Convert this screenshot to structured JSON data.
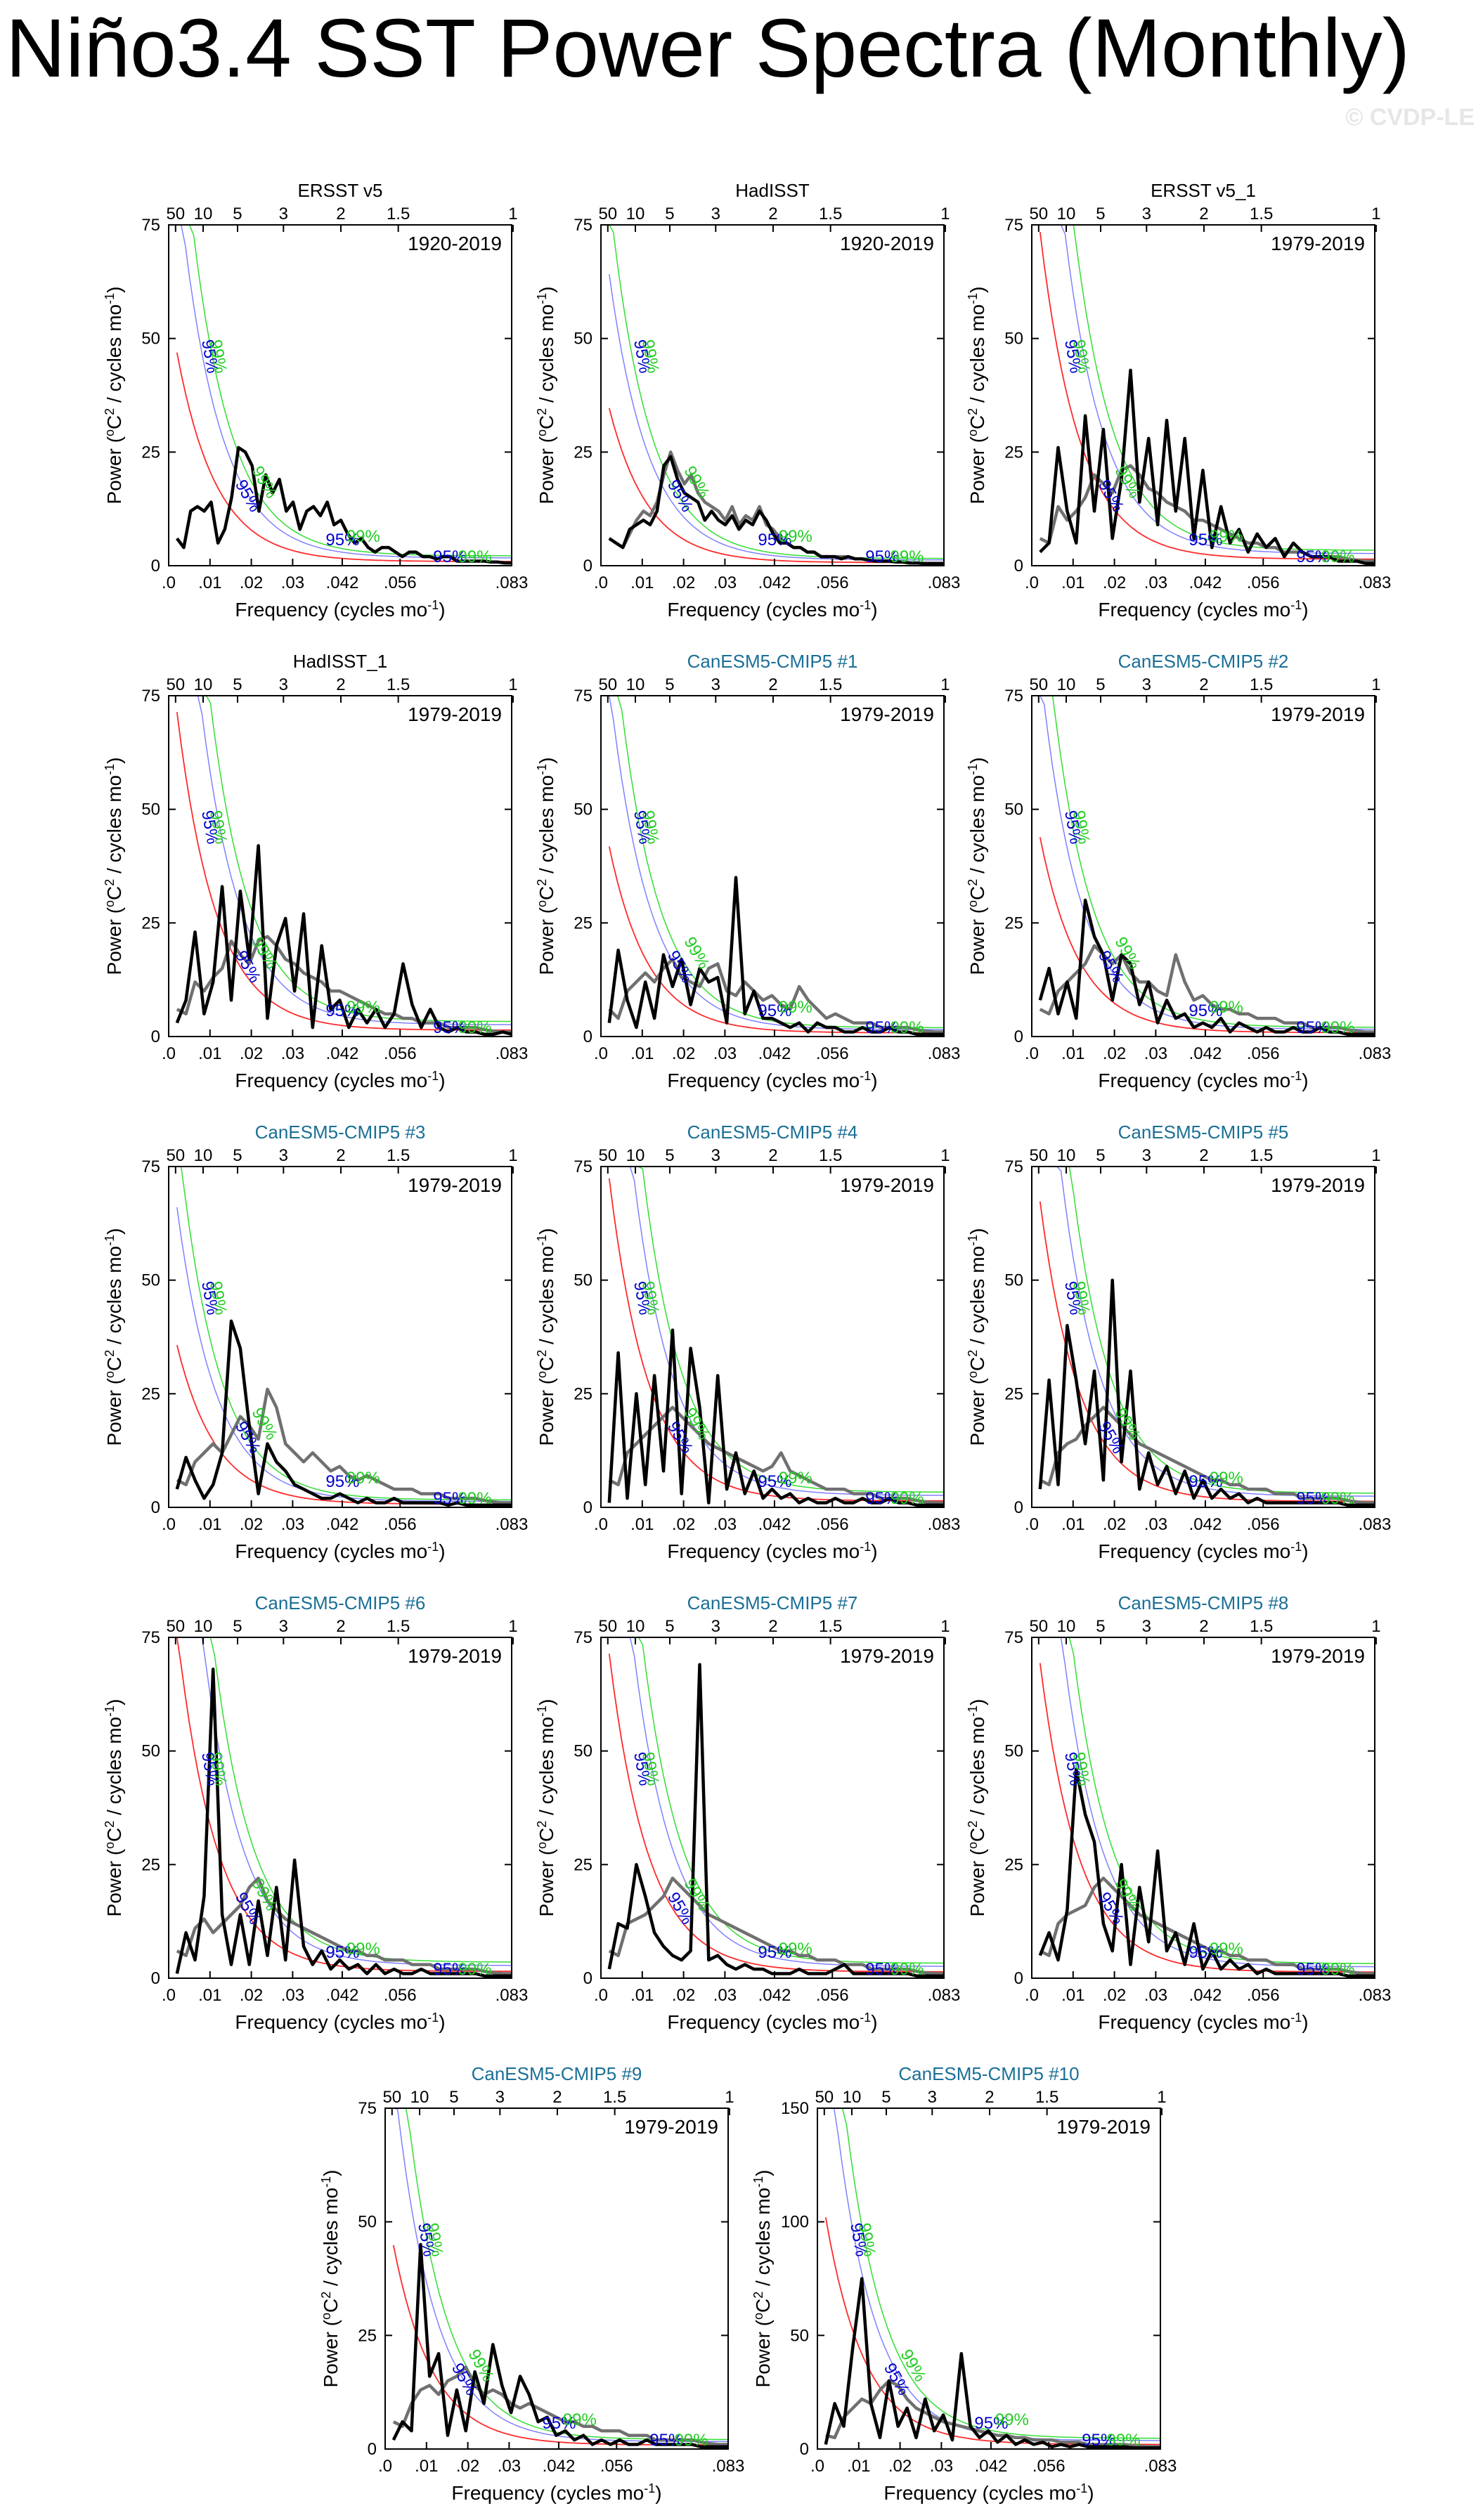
{
  "title": "Niño3.4 SST Power Spectra (Monthly)",
  "watermark": "© CVDP-LE",
  "colors": {
    "spectrum": "#000000",
    "obs_spectrum": "#707070",
    "red_noise": "#ff2a2a",
    "conf95": "#8080ff",
    "conf99": "#33dd33",
    "label95": "#0000cc",
    "label99": "#22cc22",
    "model_title": "#1a6f96",
    "obs_title": "#000000"
  },
  "common": {
    "xlabel": "Frequency (cycles mo",
    "xlabel_sup": "-1",
    "xlabel_end": ")",
    "ylabel": "Power (",
    "ylabel_deg": "o",
    "ylabel_mid": "C",
    "ylabel_sq": "2",
    "ylabel_end": " / cycles mo",
    "ylabel_sup": "-1",
    "ylabel_close": ")",
    "xticks": [
      0,
      0.014,
      0.028,
      0.042,
      0.056,
      0.083
    ],
    "xtick_labels": [
      ".0",
      ".01",
      ".02",
      ".03",
      ".042",
      ".056",
      ".083"
    ],
    "xtick_values": [
      0,
      0.01,
      0.02,
      0.03,
      0.042,
      0.056,
      0.083
    ],
    "period_labels": [
      "50",
      "10",
      "5",
      "3",
      "2",
      "1.5",
      "1"
    ],
    "period_years": [
      50,
      10,
      5,
      3,
      2,
      1.5,
      1
    ],
    "xlim": [
      0,
      0.083
    ],
    "label95": "95%",
    "label99": "99%"
  },
  "chart_data": [
    {
      "type": "line",
      "title": "ERSST v5",
      "model": false,
      "period": "1920-2019",
      "ylim": [
        0,
        75
      ],
      "yticks": [
        "0",
        "25",
        "50",
        "75"
      ],
      "red_start": 46,
      "spec": [
        6,
        4,
        12,
        13,
        12,
        14,
        5,
        8,
        15,
        26,
        25,
        22,
        12,
        20,
        16,
        19,
        12,
        14,
        8,
        12,
        13,
        11,
        14,
        9,
        10,
        7,
        5,
        6,
        4,
        3,
        4,
        4,
        3,
        2,
        3,
        3,
        2,
        2,
        1.5,
        2,
        2,
        1,
        1,
        1,
        1,
        1,
        0.8,
        0.8,
        0.6,
        0.6
      ],
      "obs": null
    },
    {
      "type": "line",
      "title": "HadISST",
      "model": false,
      "period": "1920-2019",
      "ylim": [
        0,
        75
      ],
      "yticks": [
        "0",
        "25",
        "50",
        "75"
      ],
      "red_start": 34,
      "spec": [
        6,
        5,
        4,
        8,
        9,
        10,
        9,
        12,
        22,
        24,
        19,
        16,
        15,
        14,
        10,
        12,
        10,
        9,
        11,
        8,
        10,
        9,
        12,
        10,
        7,
        5,
        5,
        4,
        4,
        3,
        3,
        2,
        2,
        2,
        1.5,
        2,
        1.5,
        1.5,
        1.2,
        1,
        1,
        1,
        0.8,
        0.8,
        0.6,
        0.6,
        0.5,
        0.5,
        0.5,
        0.5
      ],
      "obs": [
        6,
        5,
        4,
        7,
        10,
        12,
        11,
        14,
        20,
        25,
        21,
        18,
        20,
        16,
        14,
        13,
        12,
        10,
        13,
        9,
        11,
        10,
        13,
        9,
        8,
        6,
        5,
        4,
        4,
        3,
        3,
        2,
        2,
        2,
        2,
        2,
        1.5,
        1.5,
        1.2,
        1,
        1,
        1,
        0.8,
        0.8,
        0.6,
        0.6,
        0.5,
        0.5,
        0.5,
        0.5
      ]
    },
    {
      "type": "line",
      "title": "ERSST v5_1",
      "model": false,
      "period": "1979-2019",
      "ylim": [
        0,
        75
      ],
      "yticks": [
        "0",
        "25",
        "50",
        "75"
      ],
      "red_start": 72,
      "spec": [
        3,
        5,
        26,
        12,
        5,
        33,
        12,
        30,
        6,
        19,
        43,
        14,
        28,
        9,
        32,
        12,
        28,
        6,
        21,
        4,
        13,
        5,
        8,
        3,
        7,
        4,
        6,
        2,
        5,
        3,
        2,
        2,
        2,
        1,
        1,
        1,
        0.5,
        0.5
      ],
      "obs": [
        6,
        5,
        13,
        10,
        12,
        15,
        20,
        18,
        16,
        21,
        22,
        20,
        17,
        16,
        14,
        13,
        12,
        10,
        10,
        9,
        8,
        7,
        6,
        5,
        5,
        4,
        4,
        3,
        3,
        3,
        2,
        2,
        2,
        2,
        1.5,
        1.2,
        1,
        1
      ]
    },
    {
      "type": "line",
      "title": "HadISST_1",
      "model": false,
      "period": "1979-2019",
      "ylim": [
        0,
        75
      ],
      "yticks": [
        "0",
        "25",
        "50",
        "75"
      ],
      "red_start": 70,
      "spec": [
        3,
        8,
        23,
        5,
        12,
        33,
        8,
        32,
        17,
        42,
        4,
        20,
        26,
        10,
        27,
        2,
        20,
        6,
        8,
        2,
        6,
        3,
        6,
        2,
        5,
        16,
        7,
        2,
        6,
        2,
        1,
        2,
        1,
        1,
        0.5,
        0.5,
        1,
        0.5
      ],
      "obs": [
        6,
        5,
        12,
        10,
        13,
        15,
        21,
        18,
        16,
        21,
        22,
        20,
        17,
        16,
        14,
        13,
        12,
        10,
        10,
        9,
        8,
        7,
        6,
        5,
        5,
        4,
        4,
        3,
        3,
        3,
        2,
        2,
        2,
        2,
        1.5,
        1.2,
        1,
        1
      ]
    },
    {
      "type": "line",
      "title": "CanESM5-CMIP5 #1",
      "model": true,
      "period": "1979-2019",
      "ylim": [
        0,
        75
      ],
      "yticks": [
        "0",
        "25",
        "50",
        "75"
      ],
      "red_start": 41,
      "spec": [
        3,
        19,
        8,
        2,
        12,
        4,
        18,
        11,
        17,
        7,
        15,
        12,
        13,
        3,
        35,
        5,
        10,
        4,
        4,
        3,
        2,
        3,
        1,
        3,
        2,
        2,
        1,
        1,
        2,
        1,
        1,
        2,
        1,
        1,
        0.5,
        0.5,
        0.5,
        0.5
      ],
      "obs": [
        6,
        4,
        10,
        12,
        14,
        12,
        15,
        17,
        13,
        12,
        11,
        15,
        16,
        10,
        9,
        12,
        10,
        8,
        9,
        7,
        6,
        11,
        8,
        6,
        4,
        5,
        4,
        3,
        3,
        3,
        2,
        2,
        2,
        2,
        1.5,
        1.2,
        1,
        1
      ]
    },
    {
      "type": "line",
      "title": "CanESM5-CMIP5 #2",
      "model": true,
      "period": "1979-2019",
      "ylim": [
        0,
        75
      ],
      "yticks": [
        "0",
        "25",
        "50",
        "75"
      ],
      "red_start": 43,
      "spec": [
        8,
        15,
        5,
        12,
        4,
        30,
        22,
        18,
        8,
        18,
        16,
        7,
        12,
        3,
        8,
        4,
        5,
        2,
        3,
        2,
        4,
        1,
        3,
        2,
        1,
        2,
        1,
        1,
        2,
        1,
        1,
        2,
        1,
        1,
        0.5,
        0.5,
        0.5,
        0.5
      ],
      "obs": [
        6,
        5,
        10,
        12,
        14,
        16,
        20,
        18,
        16,
        18,
        14,
        12,
        12,
        10,
        9,
        18,
        12,
        8,
        9,
        7,
        6,
        6,
        5,
        5,
        4,
        4,
        4,
        3,
        3,
        3,
        2,
        2,
        2,
        2,
        1.5,
        1.2,
        1,
        1
      ]
    },
    {
      "type": "line",
      "title": "CanESM5-CMIP5 #3",
      "model": true,
      "period": "1979-2019",
      "ylim": [
        0,
        75
      ],
      "yticks": [
        "0",
        "25",
        "50",
        "75"
      ],
      "red_start": 35,
      "spec": [
        4,
        11,
        6,
        2,
        5,
        12,
        41,
        35,
        18,
        3,
        14,
        10,
        8,
        5,
        4,
        3,
        2,
        2,
        3,
        2,
        1,
        2,
        1,
        1,
        2,
        1,
        1,
        1,
        1,
        1,
        0.5,
        1,
        0.5,
        0.5,
        0.5,
        0.5,
        0.5,
        0.5
      ],
      "obs": [
        6,
        5,
        10,
        12,
        14,
        12,
        16,
        20,
        18,
        15,
        26,
        22,
        14,
        12,
        10,
        12,
        10,
        8,
        9,
        7,
        6,
        7,
        6,
        5,
        4,
        4,
        4,
        3,
        3,
        3,
        2,
        2,
        2,
        2,
        1.5,
        1.2,
        1,
        1
      ]
    },
    {
      "type": "line",
      "title": "CanESM5-CMIP5 #4",
      "model": true,
      "period": "1979-2019",
      "ylim": [
        0,
        75
      ],
      "yticks": [
        "0",
        "25",
        "50",
        "75"
      ],
      "red_start": 71,
      "spec": [
        1,
        34,
        2,
        25,
        5,
        29,
        8,
        39,
        3,
        35,
        22,
        1,
        29,
        4,
        12,
        3,
        8,
        2,
        4,
        2,
        3,
        1,
        2,
        1,
        1,
        2,
        1,
        1,
        2,
        1,
        1,
        2,
        1,
        1,
        0.5,
        0.5,
        0.5,
        0.5
      ],
      "obs": [
        6,
        5,
        12,
        14,
        16,
        18,
        20,
        22,
        20,
        18,
        16,
        14,
        13,
        12,
        11,
        10,
        9,
        8,
        9,
        12,
        8,
        7,
        6,
        5,
        4,
        4,
        4,
        3,
        3,
        3,
        2,
        2,
        2,
        2,
        1.5,
        1.2,
        1,
        1
      ]
    },
    {
      "type": "line",
      "title": "CanESM5-CMIP5 #5",
      "model": true,
      "period": "1979-2019",
      "ylim": [
        0,
        75
      ],
      "yticks": [
        "0",
        "25",
        "50",
        "75"
      ],
      "red_start": 66,
      "spec": [
        4,
        28,
        5,
        40,
        28,
        14,
        30,
        6,
        50,
        10,
        30,
        4,
        12,
        5,
        9,
        3,
        8,
        2,
        6,
        2,
        4,
        2,
        3,
        1,
        2,
        1,
        1,
        1,
        1,
        1,
        1,
        1,
        1,
        1,
        0.5,
        0.5,
        0.5,
        0.5
      ],
      "obs": [
        6,
        5,
        12,
        14,
        15,
        18,
        20,
        22,
        20,
        18,
        16,
        14,
        13,
        12,
        11,
        10,
        9,
        8,
        7,
        6,
        6,
        5,
        5,
        4,
        4,
        4,
        3,
        3,
        3,
        2,
        2,
        2,
        2,
        2,
        1.5,
        1.2,
        1,
        1
      ]
    },
    {
      "type": "line",
      "title": "CanESM5-CMIP5 #6",
      "model": true,
      "period": "1979-2019",
      "ylim": [
        0,
        75
      ],
      "yticks": [
        "0",
        "25",
        "50",
        "75"
      ],
      "red_start": 75,
      "spec": [
        1,
        10,
        4,
        18,
        68,
        14,
        3,
        14,
        3,
        17,
        5,
        20,
        4,
        26,
        7,
        3,
        6,
        2,
        4,
        2,
        3,
        1,
        3,
        1,
        2,
        1,
        1,
        2,
        1,
        1,
        1,
        1,
        1,
        1,
        0.5,
        0.5,
        0.5,
        0.5
      ],
      "obs": [
        6,
        5,
        11,
        13,
        10,
        12,
        14,
        16,
        20,
        22,
        17,
        15,
        13,
        12,
        11,
        10,
        9,
        8,
        7,
        6,
        6,
        5,
        5,
        4,
        4,
        4,
        3,
        3,
        3,
        2,
        2,
        2,
        2,
        2,
        1.5,
        1.2,
        1,
        1
      ]
    },
    {
      "type": "line",
      "title": "CanESM5-CMIP5 #7",
      "model": true,
      "period": "1979-2019",
      "ylim": [
        0,
        75
      ],
      "yticks": [
        "0",
        "25",
        "50",
        "75"
      ],
      "red_start": 70,
      "spec": [
        2,
        12,
        11,
        25,
        18,
        10,
        7,
        5,
        4,
        6,
        69,
        4,
        5,
        3,
        2,
        3,
        2,
        2,
        1,
        1,
        1,
        2,
        1,
        1,
        1,
        2,
        3,
        1,
        1,
        1,
        1,
        1,
        1,
        1,
        0.5,
        0.5,
        0.5,
        0.5
      ],
      "obs": [
        6,
        5,
        12,
        13,
        14,
        16,
        18,
        22,
        20,
        18,
        16,
        14,
        13,
        12,
        11,
        10,
        9,
        8,
        7,
        6,
        6,
        5,
        5,
        4,
        4,
        4,
        3,
        3,
        3,
        2,
        2,
        2,
        2,
        2,
        1.5,
        1.2,
        1,
        1
      ]
    },
    {
      "type": "line",
      "title": "CanESM5-CMIP5 #8",
      "model": true,
      "period": "1979-2019",
      "ylim": [
        0,
        75
      ],
      "yticks": [
        "0",
        "25",
        "50",
        "75"
      ],
      "red_start": 68,
      "spec": [
        5,
        10,
        4,
        15,
        46,
        36,
        30,
        12,
        6,
        25,
        3,
        20,
        8,
        28,
        6,
        10,
        3,
        12,
        2,
        6,
        2,
        4,
        2,
        3,
        1,
        2,
        1,
        1,
        1,
        1,
        1,
        1,
        1,
        1,
        0.5,
        0.5,
        0.5,
        0.5
      ],
      "obs": [
        6,
        5,
        12,
        14,
        15,
        16,
        20,
        22,
        20,
        18,
        16,
        14,
        13,
        12,
        11,
        10,
        9,
        8,
        7,
        6,
        6,
        5,
        5,
        4,
        4,
        4,
        3,
        3,
        3,
        2,
        2,
        2,
        2,
        2,
        1.5,
        1.2,
        1,
        1
      ]
    },
    {
      "type": "line",
      "title": "CanESM5-CMIP5 #9",
      "model": true,
      "period": "1979-2019",
      "ylim": [
        0,
        75
      ],
      "yticks": [
        "0",
        "25",
        "50",
        "75"
      ],
      "red_start": 44,
      "spec": [
        2,
        6,
        4,
        45,
        16,
        21,
        3,
        13,
        4,
        17,
        10,
        23,
        14,
        8,
        16,
        12,
        6,
        7,
        3,
        4,
        2,
        3,
        1,
        2,
        1,
        2,
        1,
        1,
        2,
        1,
        1,
        1,
        1,
        1,
        0.5,
        0.5,
        0.5,
        0.5
      ],
      "obs": [
        6,
        5,
        10,
        13,
        14,
        12,
        15,
        16,
        18,
        14,
        12,
        13,
        12,
        10,
        9,
        10,
        9,
        8,
        7,
        6,
        6,
        5,
        5,
        4,
        4,
        4,
        3,
        3,
        3,
        2,
        2,
        2,
        2,
        2,
        1.5,
        1.2,
        1,
        1
      ]
    },
    {
      "type": "line",
      "title": "CanESM5-CMIP5 #10",
      "model": true,
      "period": "1979-2019",
      "ylim": [
        0,
        150
      ],
      "yticks": [
        "0",
        "50",
        "100",
        "150"
      ],
      "red_start": 100,
      "spec": [
        2,
        20,
        10,
        45,
        75,
        20,
        5,
        30,
        10,
        18,
        5,
        22,
        8,
        15,
        4,
        42,
        10,
        5,
        8,
        3,
        6,
        2,
        4,
        2,
        3,
        1,
        2,
        1,
        2,
        1,
        1,
        1,
        1,
        1,
        0.5,
        0.5,
        0.5,
        0.5
      ],
      "obs": [
        6,
        5,
        14,
        18,
        22,
        20,
        26,
        30,
        28,
        22,
        18,
        16,
        14,
        12,
        11,
        10,
        9,
        8,
        7,
        6,
        6,
        5,
        5,
        4,
        4,
        4,
        3,
        3,
        3,
        2,
        2,
        2,
        2,
        2,
        1.5,
        1.2,
        1,
        1
      ]
    }
  ]
}
